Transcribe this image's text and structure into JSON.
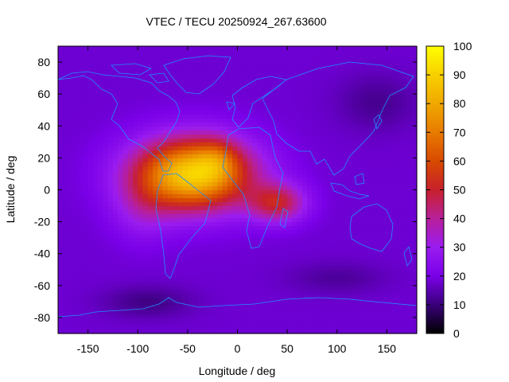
{
  "chart_data": {
    "type": "heatmap",
    "title": "VTEC / TECU 20250924_267.63600",
    "xlabel": "Longitude / deg",
    "ylabel": "Latitude / deg",
    "xlim": [
      -180,
      180
    ],
    "ylim": [
      -90,
      90
    ],
    "x_ticks": [
      -150,
      -100,
      -50,
      0,
      50,
      100,
      150
    ],
    "x_tick_labels": [
      "-150",
      "-100",
      "-50",
      "0",
      "50",
      "100",
      "150"
    ],
    "y_ticks": [
      80,
      60,
      40,
      20,
      0,
      -20,
      -40,
      -60,
      -80
    ],
    "y_tick_labels": [
      "80",
      "60",
      "40",
      "20",
      "0",
      "-20",
      "-40",
      "-60",
      "-80"
    ],
    "colorbar": {
      "range": [
        0,
        100
      ],
      "ticks": [
        0,
        10,
        20,
        30,
        40,
        50,
        60,
        70,
        80,
        90,
        100
      ],
      "tick_labels": [
        "0",
        "10",
        "20",
        "30",
        "40",
        "50",
        "60",
        "70",
        "80",
        "90",
        "100"
      ],
      "colormap": [
        "#000000",
        "#3a007a",
        "#7a00e8",
        "#9a1cf0",
        "#b8209a",
        "#c8202c",
        "#d84a00",
        "#e87a00",
        "#f0a800",
        "#f8d000",
        "#ffff00"
      ]
    },
    "grid_resolution_deg": [
      5,
      2.5
    ],
    "peaks": [
      {
        "lon": -45,
        "lat": 10,
        "sigma_lon": 58,
        "sigma_lat": 22,
        "value": 72
      },
      {
        "lon": -20,
        "lat": 20,
        "sigma_lon": 20,
        "sigma_lat": 12,
        "value": 12
      },
      {
        "lon": 40,
        "lat": -8,
        "sigma_lon": 28,
        "sigma_lat": 12,
        "value": 30
      },
      {
        "lon": -95,
        "lat": -12,
        "sigma_lon": 30,
        "sigma_lat": 20,
        "value": 10
      }
    ],
    "background_value": 18,
    "coastline_color": "#1e90ff"
  }
}
